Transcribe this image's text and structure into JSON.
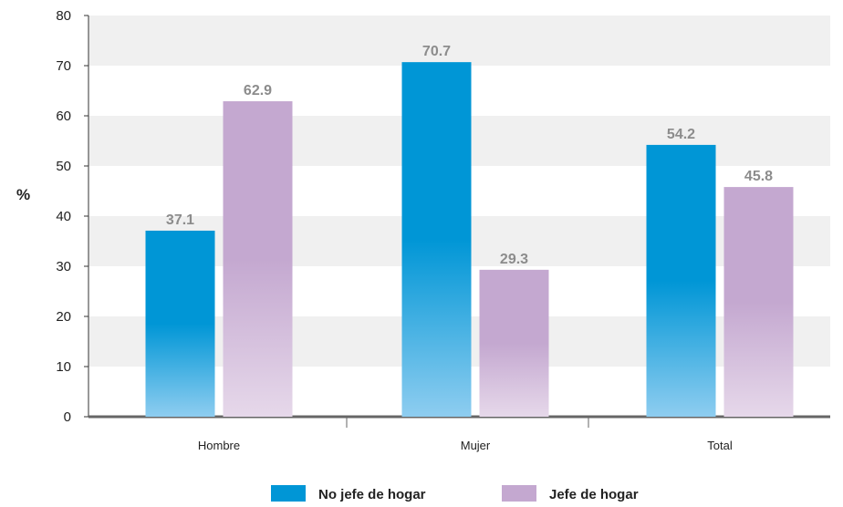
{
  "chart_data": {
    "type": "bar",
    "categories": [
      "Hombre",
      "Mujer",
      "Total"
    ],
    "series": [
      {
        "name": "No jefe de hogar",
        "values": [
          37.1,
          70.7,
          54.2
        ],
        "color": "#0096d6",
        "color_light": "#8ecdf0"
      },
      {
        "name": "Jefe de hogar",
        "values": [
          62.9,
          29.3,
          45.8
        ],
        "color": "#c4a8d0",
        "color_light": "#e6d8ea"
      }
    ],
    "title": "",
    "xlabel": "",
    "ylabel": "%",
    "ylim": [
      0,
      80
    ],
    "yticks": [
      0,
      10,
      20,
      30,
      40,
      50,
      60,
      70,
      80
    ],
    "grid": "alternating horizontal bands",
    "legend": "bottom-center"
  }
}
